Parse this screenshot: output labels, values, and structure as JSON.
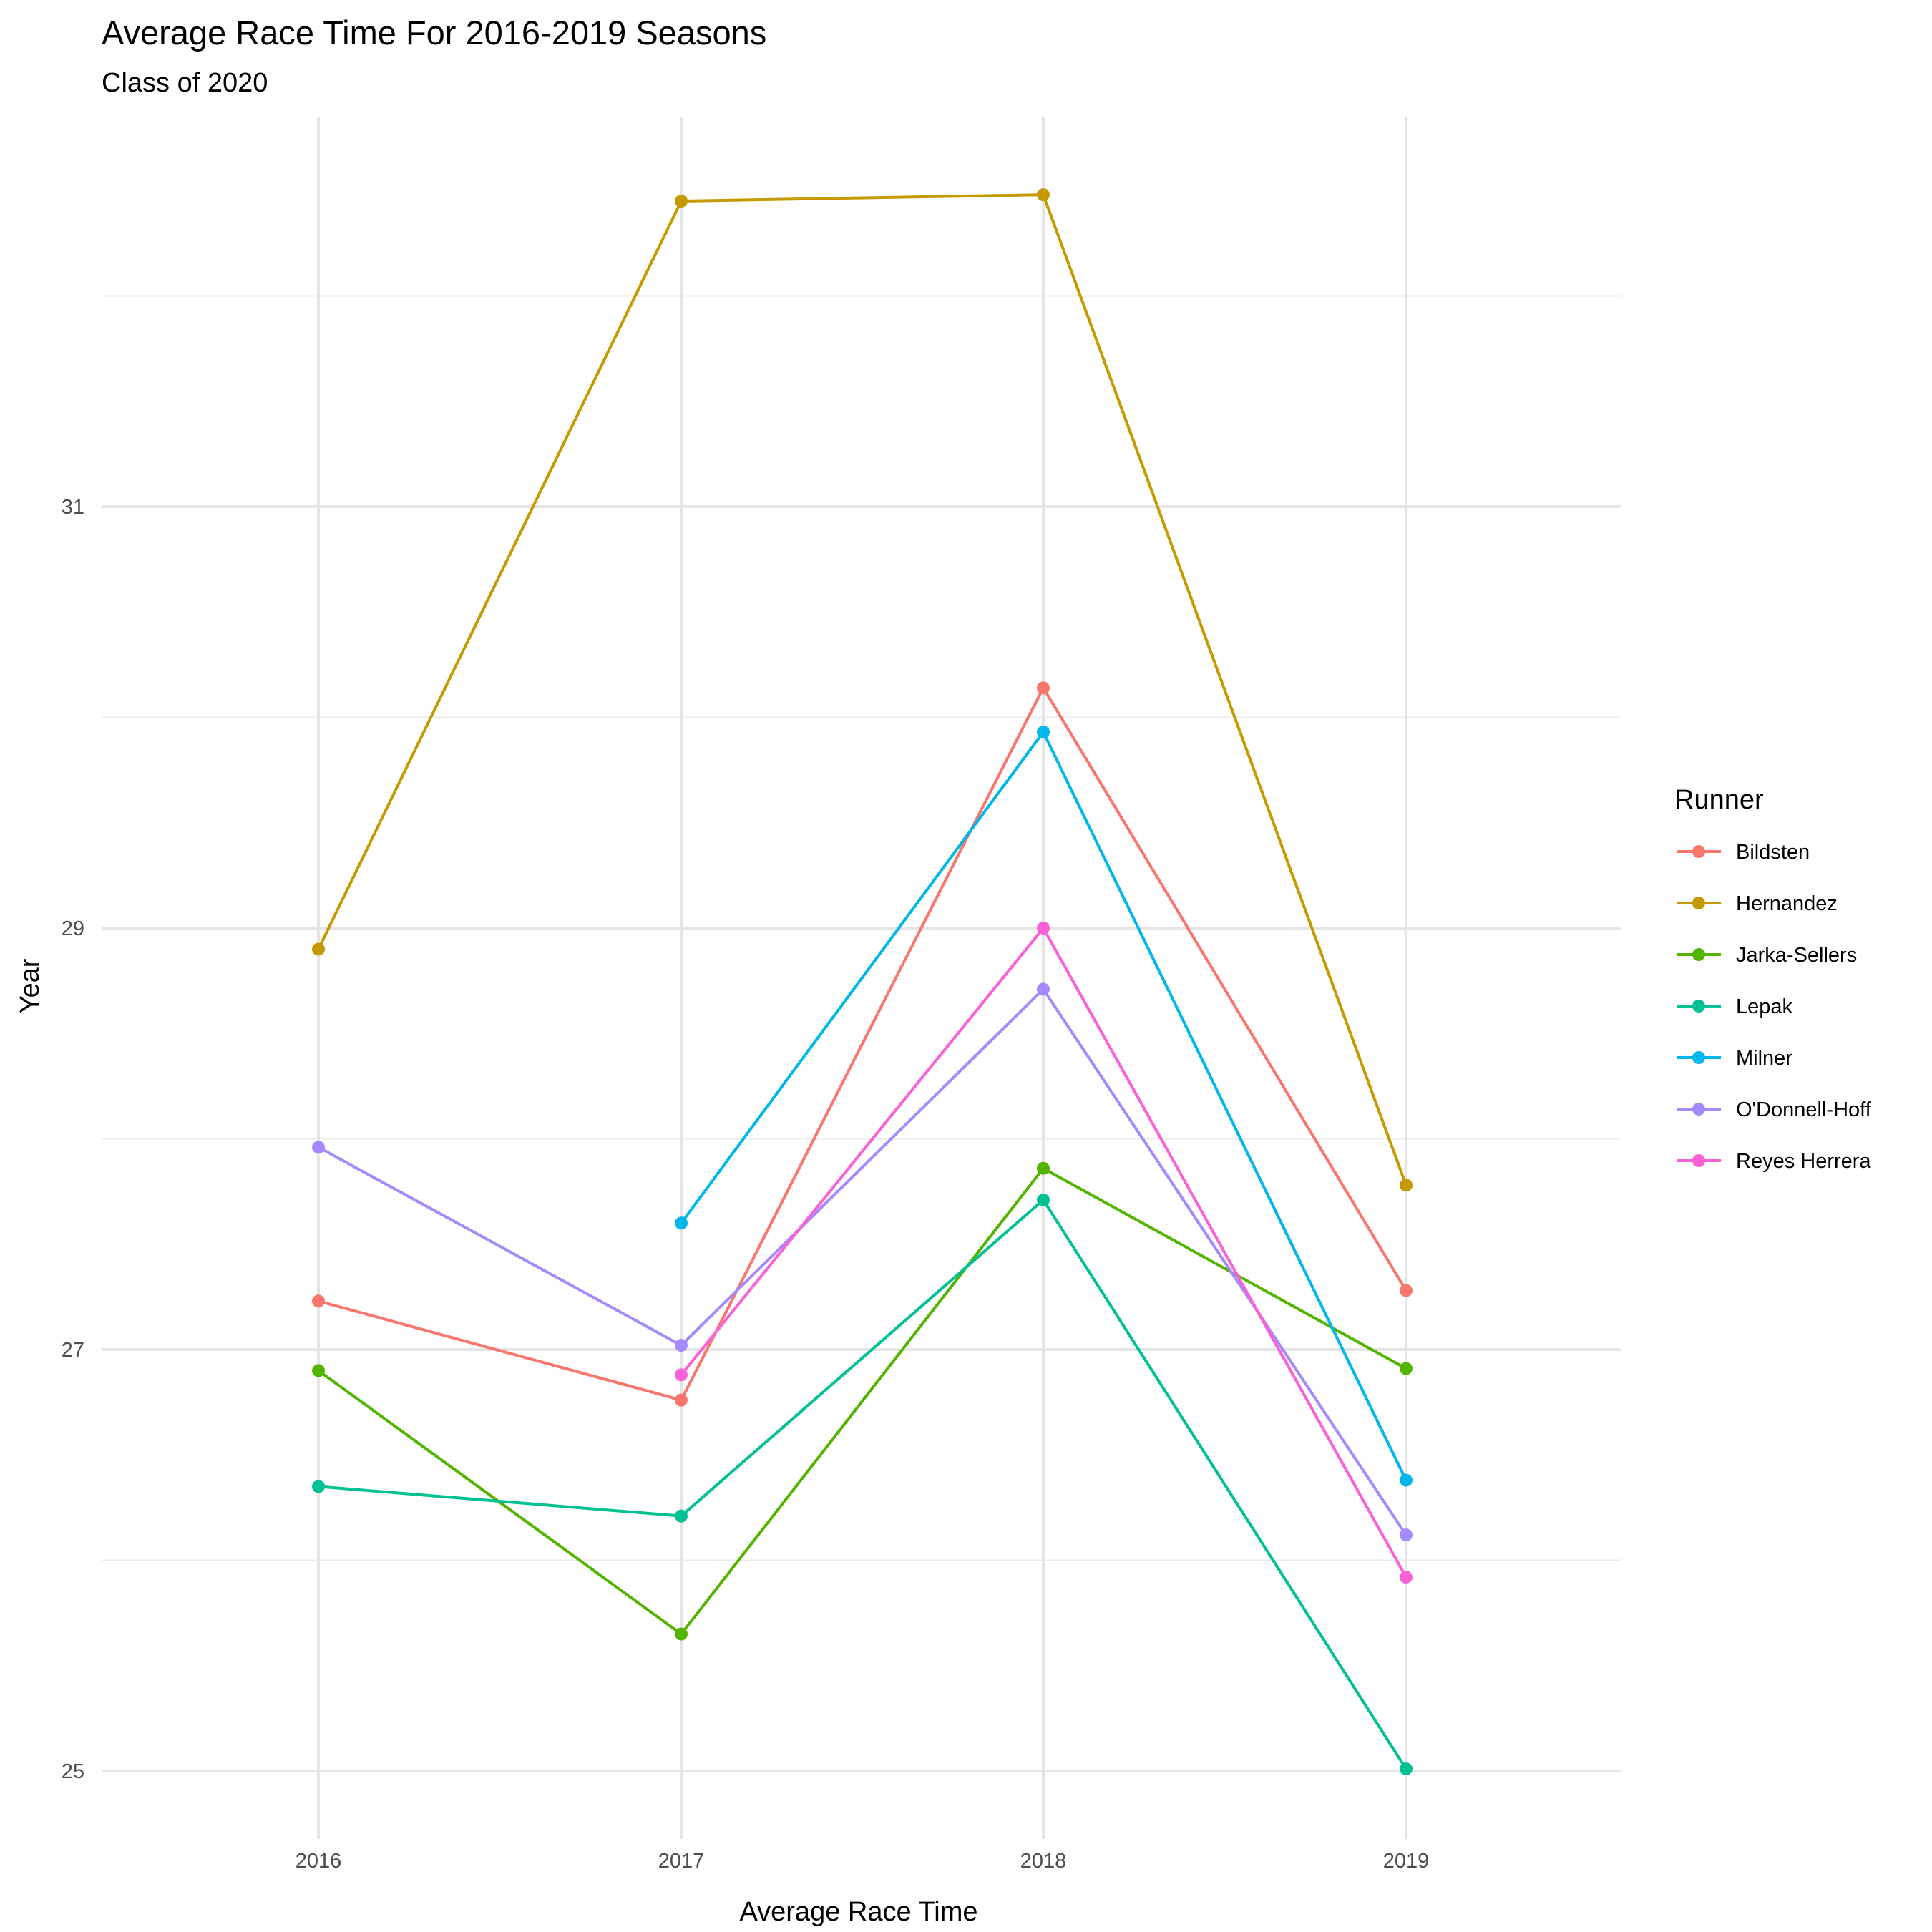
{
  "chart_data": {
    "type": "line",
    "title": "Average Race Time For 2016-2019 Seasons",
    "subtitle": "Class of 2020",
    "xlabel": "Average Race Time",
    "ylabel": "Year",
    "categories": [
      "2016",
      "2017",
      "2018",
      "2019"
    ],
    "x_ticks": [
      "2016",
      "2017",
      "2018",
      "2019"
    ],
    "y_ticks": [
      "25",
      "27",
      "29",
      "31"
    ],
    "ylim": [
      24.8,
      32.9
    ],
    "grid": true,
    "legend_title": "Runner",
    "legend_position": "right",
    "series": [
      {
        "name": "Bildsten",
        "color": "#F8766D",
        "values": [
          27.23,
          26.76,
          30.14,
          27.28
        ]
      },
      {
        "name": "Hernandez",
        "color": "#C49A00",
        "values": [
          28.9,
          32.45,
          32.48,
          27.78
        ]
      },
      {
        "name": "Jarka-Sellers",
        "color": "#53B400",
        "values": [
          26.9,
          25.65,
          27.86,
          26.91
        ]
      },
      {
        "name": "Lepak",
        "color": "#00C094",
        "values": [
          26.35,
          26.21,
          27.71,
          25.01
        ]
      },
      {
        "name": "Milner",
        "color": "#00B6EB",
        "values": [
          null,
          27.6,
          29.93,
          26.38
        ]
      },
      {
        "name": "O'Donnell-Hoff",
        "color": "#A58AFF",
        "values": [
          27.96,
          27.02,
          28.71,
          26.12
        ]
      },
      {
        "name": "Reyes Herrera",
        "color": "#FB61D7",
        "values": [
          null,
          26.88,
          29.0,
          25.92
        ]
      }
    ]
  }
}
